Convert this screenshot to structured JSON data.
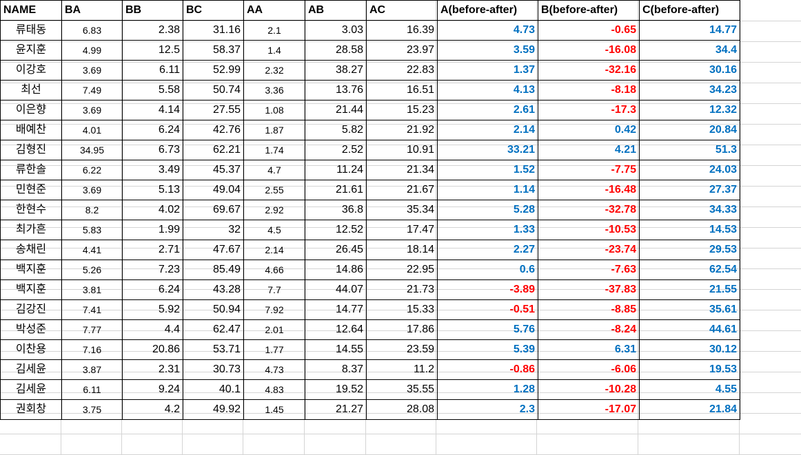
{
  "sheet": {
    "headers": [
      "NAME",
      "BA",
      "BB",
      "BC",
      "AA",
      "AB",
      "AC",
      "A(before-after)",
      "B(before-after)",
      "C(before-after)"
    ],
    "colors": {
      "positive": "#0070c0",
      "negative": "#ff0000",
      "grid": "#d4d4d4"
    },
    "rows": [
      [
        "류태동",
        "6.83",
        "2.38",
        "31.16",
        "2.1",
        "3.03",
        "16.39",
        "4.73",
        "-0.65",
        "14.77"
      ],
      [
        "윤지훈",
        "4.99",
        "12.5",
        "58.37",
        "1.4",
        "28.58",
        "23.97",
        "3.59",
        "-16.08",
        "34.4"
      ],
      [
        "이강호",
        "3.69",
        "6.11",
        "52.99",
        "2.32",
        "38.27",
        "22.83",
        "1.37",
        "-32.16",
        "30.16"
      ],
      [
        "최선",
        "7.49",
        "5.58",
        "50.74",
        "3.36",
        "13.76",
        "16.51",
        "4.13",
        "-8.18",
        "34.23"
      ],
      [
        "이은향",
        "3.69",
        "4.14",
        "27.55",
        "1.08",
        "21.44",
        "15.23",
        "2.61",
        "-17.3",
        "12.32"
      ],
      [
        "배예찬",
        "4.01",
        "6.24",
        "42.76",
        "1.87",
        "5.82",
        "21.92",
        "2.14",
        "0.42",
        "20.84"
      ],
      [
        "김형진",
        "34.95",
        "6.73",
        "62.21",
        "1.74",
        "2.52",
        "10.91",
        "33.21",
        "4.21",
        "51.3"
      ],
      [
        "류한솔",
        "6.22",
        "3.49",
        "45.37",
        "4.7",
        "11.24",
        "21.34",
        "1.52",
        "-7.75",
        "24.03"
      ],
      [
        "민현준",
        "3.69",
        "5.13",
        "49.04",
        "2.55",
        "21.61",
        "21.67",
        "1.14",
        "-16.48",
        "27.37"
      ],
      [
        "한현수",
        "8.2",
        "4.02",
        "69.67",
        "2.92",
        "36.8",
        "35.34",
        "5.28",
        "-32.78",
        "34.33"
      ],
      [
        "최가흔",
        "5.83",
        "1.99",
        "32",
        "4.5",
        "12.52",
        "17.47",
        "1.33",
        "-10.53",
        "14.53"
      ],
      [
        "송채린",
        "4.41",
        "2.71",
        "47.67",
        "2.14",
        "26.45",
        "18.14",
        "2.27",
        "-23.74",
        "29.53"
      ],
      [
        "백지훈",
        "5.26",
        "7.23",
        "85.49",
        "4.66",
        "14.86",
        "22.95",
        "0.6",
        "-7.63",
        "62.54"
      ],
      [
        "백지훈",
        "3.81",
        "6.24",
        "43.28",
        "7.7",
        "44.07",
        "21.73",
        "-3.89",
        "-37.83",
        "21.55"
      ],
      [
        "김강진",
        "7.41",
        "5.92",
        "50.94",
        "7.92",
        "14.77",
        "15.33",
        "-0.51",
        "-8.85",
        "35.61"
      ],
      [
        "박성준",
        "7.77",
        "4.4",
        "62.47",
        "2.01",
        "12.64",
        "17.86",
        "5.76",
        "-8.24",
        "44.61"
      ],
      [
        "이찬용",
        "7.16",
        "20.86",
        "53.71",
        "1.77",
        "14.55",
        "23.59",
        "5.39",
        "6.31",
        "30.12"
      ],
      [
        "김세윤",
        "3.87",
        "2.31",
        "30.73",
        "4.73",
        "8.37",
        "11.2",
        "-0.86",
        "-6.06",
        "19.53"
      ],
      [
        "김세윤",
        "6.11",
        "9.24",
        "40.1",
        "4.83",
        "19.52",
        "35.55",
        "1.28",
        "-10.28",
        "4.55"
      ],
      [
        "권회창",
        "3.75",
        "4.2",
        "49.92",
        "1.45",
        "21.27",
        "28.08",
        "2.3",
        "-17.07",
        "21.84"
      ]
    ]
  }
}
